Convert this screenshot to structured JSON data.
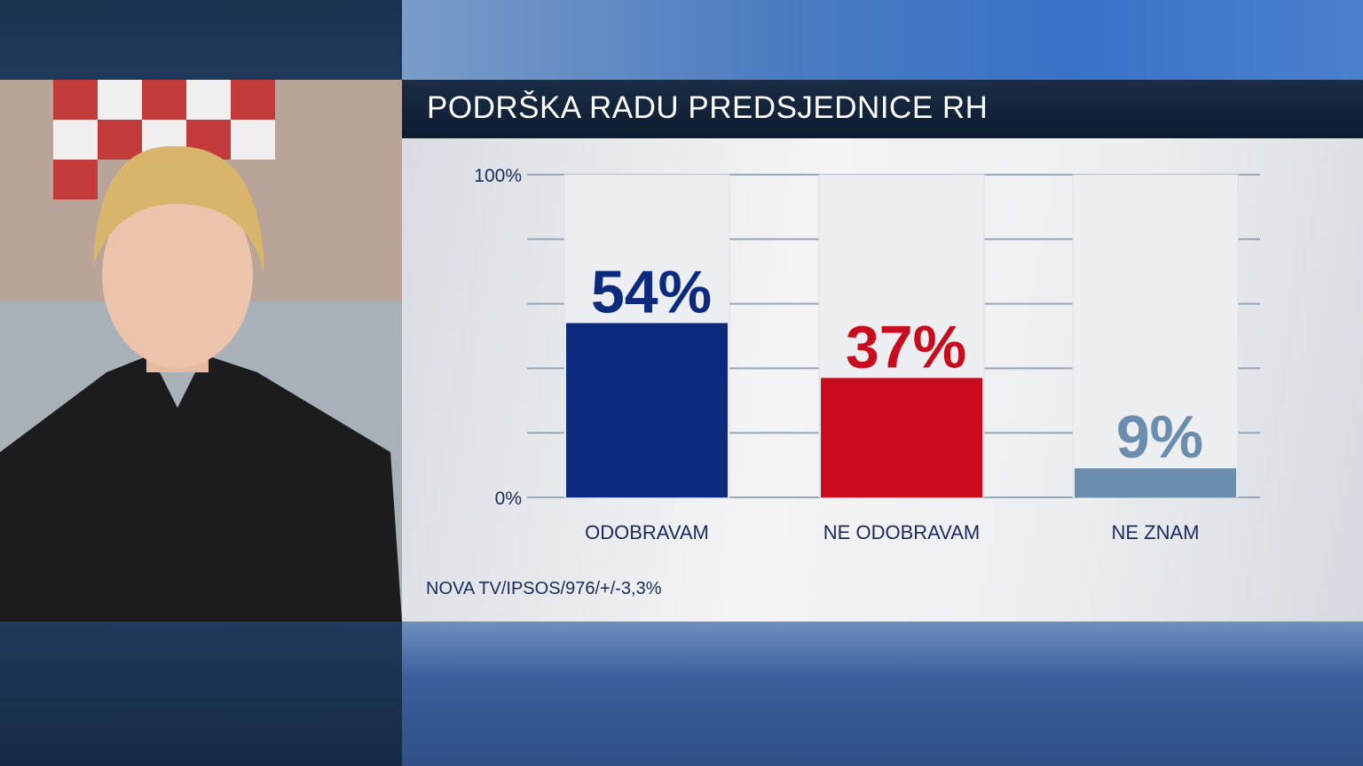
{
  "chart_data": {
    "type": "bar",
    "title": "PODRŠKA RADU PREDSJEDNICE RH",
    "categories": [
      "ODOBRAVAM",
      "NE ODOBRAVAM",
      "NE ZNAM"
    ],
    "values": [
      54,
      37,
      9
    ],
    "data_labels": [
      "54%",
      "37%",
      "9%"
    ],
    "colors": [
      "#0c2a7e",
      "#c80c1e",
      "#6a8cad"
    ],
    "ylim": [
      0,
      100
    ],
    "ytick_labels": [
      "0%",
      "100%"
    ],
    "grid": true,
    "source": "NOVA TV/IPSOS/976/+/-3,3%"
  }
}
